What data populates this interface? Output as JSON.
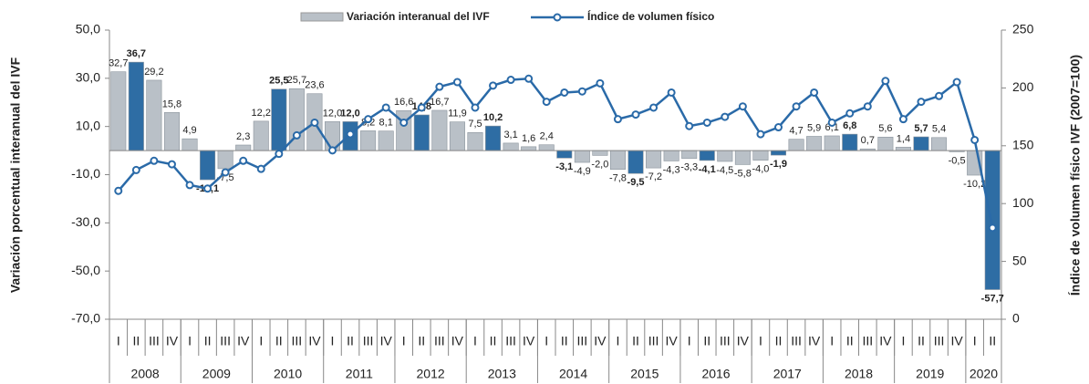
{
  "chart_data": {
    "type": "bar_line",
    "categories": [
      "I",
      "II",
      "III",
      "IV",
      "I",
      "II",
      "III",
      "IV",
      "I",
      "II",
      "III",
      "IV",
      "I",
      "II",
      "III",
      "IV",
      "I",
      "II",
      "III",
      "IV",
      "I",
      "II",
      "III",
      "IV",
      "I",
      "II",
      "III",
      "IV",
      "I",
      "II",
      "III",
      "IV",
      "I",
      "II",
      "III",
      "IV",
      "I",
      "II",
      "III",
      "IV",
      "I",
      "II",
      "III",
      "IV",
      "I",
      "II",
      "III",
      "IV",
      "I",
      "II"
    ],
    "years": [
      "2008",
      "2009",
      "2010",
      "2011",
      "2012",
      "2013",
      "2014",
      "2015",
      "2016",
      "2017",
      "2018",
      "2019",
      "2020"
    ],
    "ylabel": "Variación porcentual interanual del IVF",
    "y2label": "Índice de volumen físico IVF (2007=100)",
    "ylim": [
      -70,
      50
    ],
    "yticks": [
      {
        "value": 50,
        "label": "50,0"
      },
      {
        "value": 30,
        "label": "30,0"
      },
      {
        "value": 10,
        "label": "10,0"
      },
      {
        "value": -10,
        "label": "-10,0"
      },
      {
        "value": -30,
        "label": "-30,0"
      },
      {
        "value": -50,
        "label": "-50,0"
      },
      {
        "value": -70,
        "label": "-70,0"
      }
    ],
    "y2lim": [
      0,
      250
    ],
    "y2ticks": [
      0,
      50,
      100,
      150,
      200,
      250
    ],
    "series": [
      {
        "name": "Variación interanual del IVF",
        "type": "bar",
        "color": "#b9c0c7",
        "colors": [
          "#b9c0c7",
          "#2e6da4",
          "#b9c0c7",
          "#b9c0c7",
          "#b9c0c7",
          "#2e6da4",
          "#b9c0c7",
          "#b9c0c7",
          "#b9c0c7",
          "#2e6da4",
          "#b9c0c7",
          "#b9c0c7",
          "#b9c0c7",
          "#2e6da4",
          "#b9c0c7",
          "#b9c0c7",
          "#b9c0c7",
          "#2e6da4",
          "#b9c0c7",
          "#b9c0c7",
          "#b9c0c7",
          "#2e6da4",
          "#b9c0c7",
          "#b9c0c7",
          "#b9c0c7",
          "#2e6da4",
          "#b9c0c7",
          "#b9c0c7",
          "#b9c0c7",
          "#2e6da4",
          "#b9c0c7",
          "#b9c0c7",
          "#b9c0c7",
          "#2e6da4",
          "#b9c0c7",
          "#b9c0c7",
          "#b9c0c7",
          "#2e6da4",
          "#b9c0c7",
          "#b9c0c7",
          "#b9c0c7",
          "#2e6da4",
          "#b9c0c7",
          "#b9c0c7",
          "#b9c0c7",
          "#2e6da4",
          "#b9c0c7",
          "#b9c0c7",
          "#b9c0c7",
          "#2e6da4"
        ],
        "values": [
          32.7,
          36.7,
          29.2,
          15.8,
          4.9,
          -12.1,
          -7.5,
          2.3,
          12.2,
          25.5,
          25.7,
          23.6,
          12.0,
          12.0,
          8.2,
          8.1,
          16.6,
          14.8,
          16.7,
          11.9,
          7.5,
          10.2,
          3.1,
          1.6,
          2.4,
          -3.1,
          -4.9,
          -2.0,
          -7.8,
          -9.5,
          -7.2,
          -4.3,
          -3.3,
          -4.1,
          -4.5,
          -5.8,
          -4.0,
          -1.9,
          4.7,
          5.9,
          6.1,
          6.8,
          0.7,
          5.6,
          1.4,
          5.7,
          5.4,
          -0.5,
          -10.2,
          -57.7
        ],
        "value_labels": [
          "32,7",
          "36,7",
          "29,2",
          "15,8",
          "4,9",
          "-12,1",
          "-7,5",
          "2,3",
          "12,2",
          "25,5",
          "25,7",
          "23,6",
          "12,0",
          "12,0",
          "8,2",
          "8,1",
          "16,6",
          "14,8",
          "16,7",
          "11,9",
          "7,5",
          "10,2",
          "3,1",
          "1,6",
          "2,4",
          "-3,1",
          "-4,9",
          "-2,0",
          "-7,8",
          "-9,5",
          "-7,2",
          "-4,3",
          "-3,3",
          "-4,1",
          "-4,5",
          "-5,8",
          "-4,0",
          "-1,9",
          "4,7",
          "5,9",
          "6,1",
          "6,8",
          "0,7",
          "5,6",
          "1,4",
          "5,7",
          "5,4",
          "-0,5",
          "-10,2",
          "-57,7"
        ]
      },
      {
        "name": "Índice de volumen físico",
        "type": "line",
        "axis": "y2",
        "color": "#2a6aa8",
        "values": [
          111,
          129,
          137,
          134,
          116,
          113,
          127,
          137,
          130,
          143,
          159,
          170,
          146,
          160,
          173,
          183,
          170,
          183,
          201,
          205,
          183,
          202,
          207,
          208,
          188,
          196,
          197,
          204,
          173,
          177,
          183,
          196,
          167,
          170,
          175,
          184,
          160,
          166,
          184,
          196,
          170,
          178,
          184,
          206,
          173,
          188,
          193,
          205,
          155,
          79
        ]
      }
    ]
  }
}
